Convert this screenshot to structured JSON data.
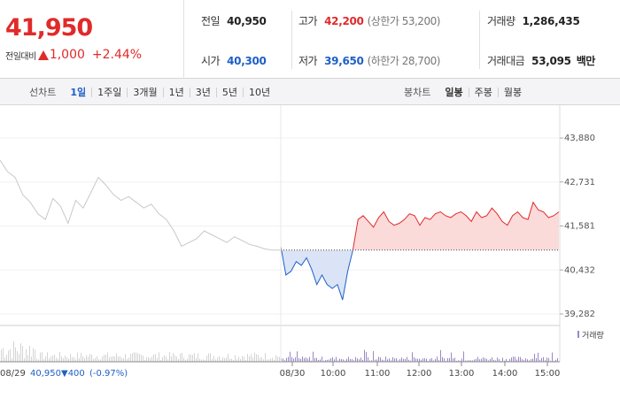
{
  "quote": {
    "price": "41,950",
    "change_label": "전일대비",
    "change_value": "1,000",
    "change_pct": "+2.44%"
  },
  "stats": {
    "prev_close": {
      "label": "전일",
      "value": "40,950"
    },
    "high": {
      "label": "고가",
      "value": "42,200",
      "limit_label": "(상한가 53,200)"
    },
    "volume": {
      "label": "거래량",
      "value": "1,286,435"
    },
    "open": {
      "label": "시가",
      "value": "40,300"
    },
    "low": {
      "label": "저가",
      "value": "39,650",
      "limit_label": "(하한가 28,700)"
    },
    "amount": {
      "label": "거래대금",
      "value": "53,095",
      "unit": "백만"
    }
  },
  "line_tabs": {
    "label": "선차트",
    "items": [
      "1일",
      "1주일",
      "3개월",
      "1년",
      "3년",
      "5년",
      "10년"
    ],
    "active": 0
  },
  "candle_tabs": {
    "label": "봉차트",
    "items": [
      "일봉",
      "주봉",
      "월봉"
    ]
  },
  "colors": {
    "up": "#e12a2a",
    "down": "#1f5fc7",
    "prev": "#c8c8c8",
    "volume": "#9a88c8"
  },
  "chart_data": {
    "type": "line",
    "ylim": [
      39282,
      43880
    ],
    "y_ticks": [
      "43,880",
      "42,731",
      "41,581",
      "40,432",
      "39,282"
    ],
    "x_ticks": [
      "08/30",
      "10:00",
      "11:00",
      "12:00",
      "13:00",
      "14:00",
      "15:00"
    ],
    "baseline": 40950,
    "volume_label": "거래량",
    "prev_day": {
      "date": "08/29",
      "close": "40,950",
      "change": "▼400",
      "change_pct": "(-0.97%)",
      "values": [
        43300,
        43000,
        42850,
        42400,
        42200,
        41900,
        41750,
        42300,
        42100,
        41650,
        42250,
        42050,
        42450,
        42850,
        42650,
        42400,
        42250,
        42350,
        42200,
        42050,
        42150,
        41900,
        41750,
        41450,
        41050,
        41150,
        41250,
        41450,
        41350,
        41250,
        41150,
        41300,
        41200,
        41100,
        41050,
        40980,
        40950,
        40950
      ]
    },
    "today": {
      "values": [
        41050,
        40300,
        40400,
        40650,
        40550,
        40750,
        40450,
        40050,
        40300,
        40050,
        39950,
        40050,
        39650,
        40400,
        40950,
        41750,
        41850,
        41700,
        41550,
        41800,
        41950,
        41700,
        41600,
        41650,
        41750,
        41900,
        41850,
        41600,
        41800,
        41750,
        41900,
        41950,
        41850,
        41800,
        41900,
        41950,
        41850,
        41700,
        41950,
        41800,
        41850,
        42050,
        41900,
        41700,
        41600,
        41850,
        41950,
        41800,
        41750,
        42200,
        42000,
        41950,
        41800,
        41850,
        41950
      ]
    }
  }
}
